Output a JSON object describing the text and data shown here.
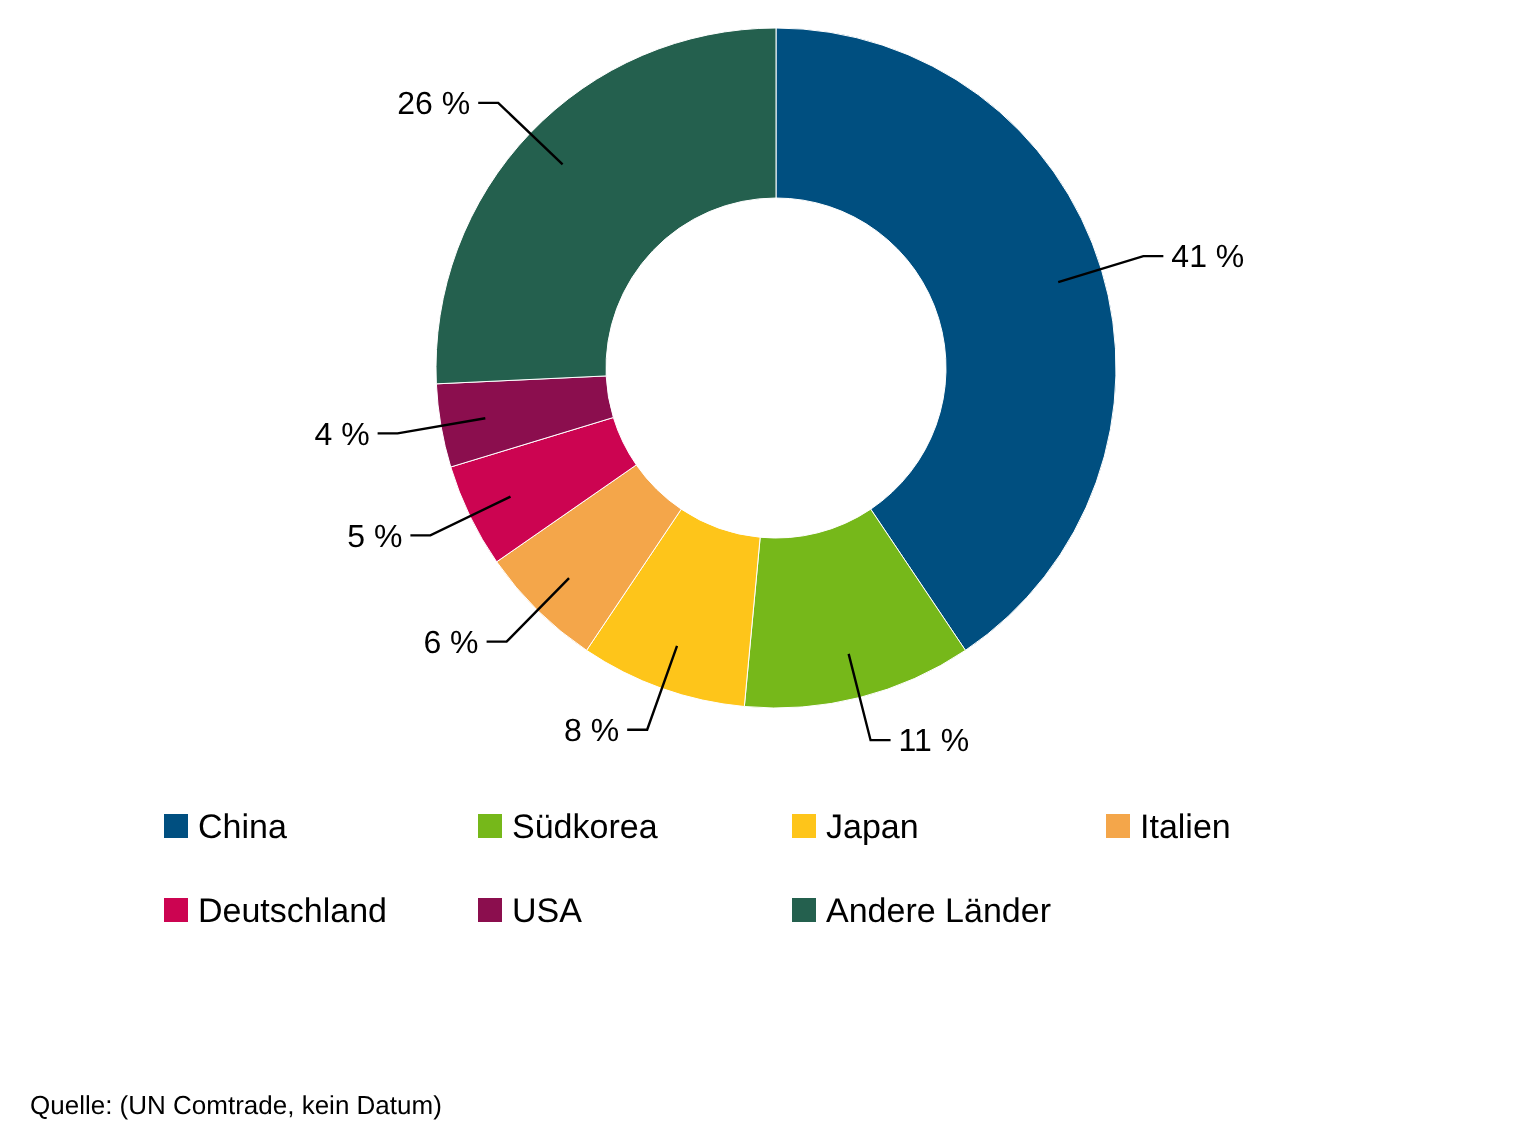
{
  "chart_data": {
    "type": "donut",
    "categories": [
      "China",
      "Südkorea",
      "Japan",
      "Italien",
      "Deutschland",
      "USA",
      "Andere Länder"
    ],
    "values": [
      41,
      11,
      8,
      6,
      5,
      4,
      26
    ],
    "colors": [
      "#004f80",
      "#76b81a",
      "#fec51a",
      "#f4a64a",
      "#cc0451",
      "#8b0e4e",
      "#24604e"
    ],
    "value_labels": [
      "41 %",
      "11 %",
      "8 %",
      "6 %",
      "5 %",
      "4 %",
      "26 %"
    ],
    "legend": "bottom",
    "annotations": [
      "Quelle: (UN Comtrade, kein Datum)"
    ]
  }
}
